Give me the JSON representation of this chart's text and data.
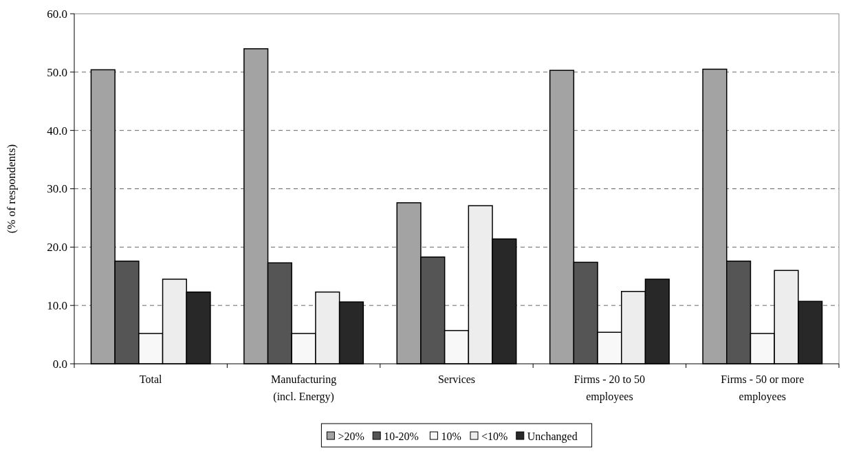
{
  "chart_data": {
    "type": "bar",
    "ylabel": "(% of respondents)",
    "categories": [
      "Total",
      "Manufacturing (incl. Energy)",
      "Services",
      "Firms - 20 to 50 employees",
      "Firms - 50 or more employees"
    ],
    "series": [
      {
        "name": ">20%",
        "color": "#a3a3a3",
        "values": [
          50.4,
          54.0,
          27.6,
          50.3,
          50.5
        ]
      },
      {
        "name": "10-20%",
        "color": "#555555",
        "values": [
          17.6,
          17.3,
          18.3,
          17.4,
          17.6
        ]
      },
      {
        "name": "10%",
        "color": "#f8f8f8",
        "values": [
          5.2,
          5.2,
          5.7,
          5.4,
          5.2
        ]
      },
      {
        "name": "<10%",
        "color": "#ededed",
        "values": [
          14.5,
          12.3,
          27.1,
          12.4,
          16.0
        ]
      },
      {
        "name": "Unchanged",
        "color": "#282828",
        "values": [
          12.3,
          10.6,
          21.4,
          14.5,
          10.7
        ]
      }
    ],
    "ylim": [
      0,
      60
    ],
    "yticks": [
      {
        "value": 0,
        "label": "0.0"
      },
      {
        "value": 10,
        "label": "10.0"
      },
      {
        "value": 20,
        "label": "20.0"
      },
      {
        "value": 30,
        "label": "30.0"
      },
      {
        "value": 40,
        "label": "40.0"
      },
      {
        "value": 50,
        "label": "50.0"
      },
      {
        "value": 60,
        "label": "60.0"
      }
    ],
    "grid": "y",
    "legend": "bottom"
  }
}
